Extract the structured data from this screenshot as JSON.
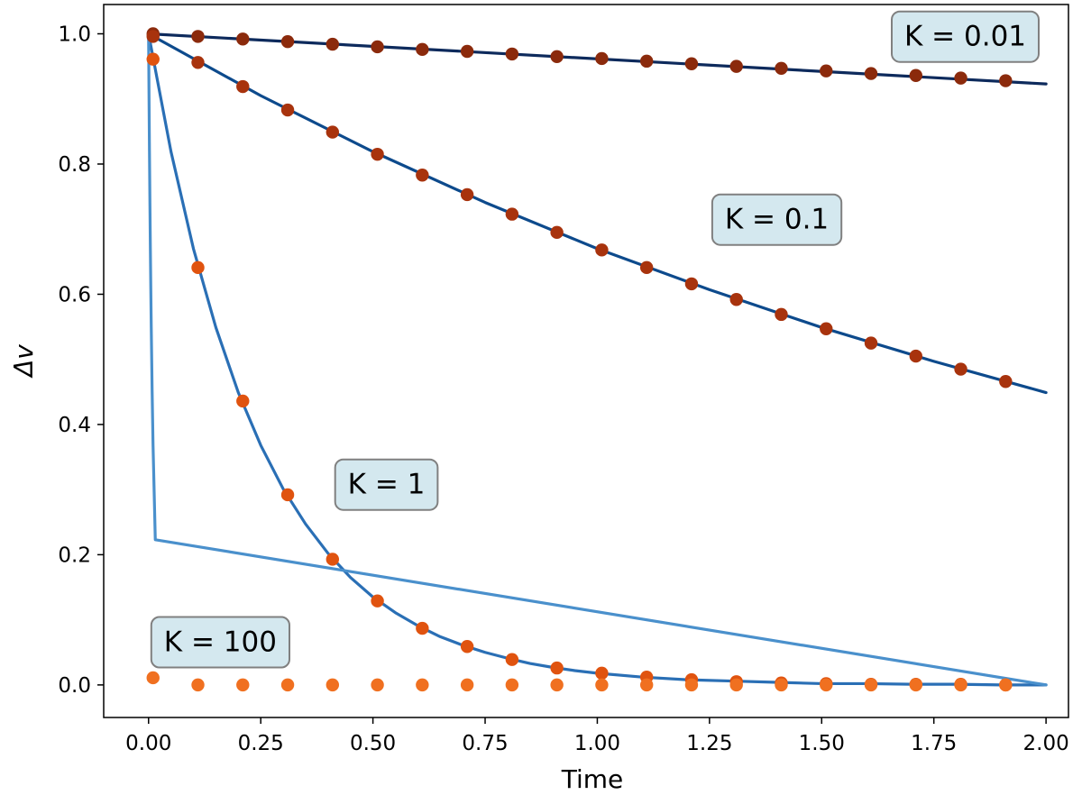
{
  "chart_data": {
    "type": "line",
    "xlabel": "Time",
    "ylabel": "Δv",
    "xlim": [
      -0.1,
      2.05
    ],
    "ylim": [
      -0.05,
      1.045
    ],
    "xticks": [
      "0.00",
      "0.25",
      "0.50",
      "0.75",
      "1.00",
      "1.25",
      "1.50",
      "1.75",
      "2.00"
    ],
    "yticks": [
      "0.0",
      "0.2",
      "0.4",
      "0.6",
      "0.8",
      "1.0"
    ],
    "grid": false,
    "series": [
      {
        "name": "K = 0.01",
        "K": 0.01,
        "line_color": "#0d2a5c",
        "marker_color": "#8b2a0c",
        "curve_x": [
          0.0,
          2.0
        ],
        "curve_y": [
          1.0,
          0.923
        ],
        "points_x": [
          0.01,
          0.11,
          0.21,
          0.31,
          0.41,
          0.51,
          0.61,
          0.71,
          0.81,
          0.91,
          1.01,
          1.11,
          1.21,
          1.31,
          1.41,
          1.51,
          1.61,
          1.71,
          1.81,
          1.91
        ],
        "points_y": [
          1.0,
          0.996,
          0.992,
          0.988,
          0.984,
          0.98,
          0.976,
          0.973,
          0.969,
          0.965,
          0.962,
          0.958,
          0.954,
          0.95,
          0.947,
          0.943,
          0.939,
          0.936,
          0.932,
          0.928
        ]
      },
      {
        "name": "K = 0.1",
        "K": 0.1,
        "line_color": "#0d4a8c",
        "marker_color": "#a8330d",
        "curve_x": [
          0.0,
          0.25,
          0.5,
          0.75,
          1.0,
          1.25,
          1.5,
          1.75,
          2.0
        ],
        "curve_y": [
          1.0,
          0.905,
          0.819,
          0.741,
          0.67,
          0.607,
          0.549,
          0.497,
          0.449
        ],
        "points_x": [
          0.01,
          0.11,
          0.21,
          0.31,
          0.41,
          0.51,
          0.61,
          0.71,
          0.81,
          0.91,
          1.01,
          1.11,
          1.21,
          1.31,
          1.41,
          1.51,
          1.61,
          1.71,
          1.81,
          1.91
        ],
        "points_y": [
          0.996,
          0.956,
          0.919,
          0.883,
          0.849,
          0.815,
          0.783,
          0.753,
          0.723,
          0.695,
          0.668,
          0.641,
          0.616,
          0.592,
          0.569,
          0.547,
          0.525,
          0.505,
          0.485,
          0.466
        ]
      },
      {
        "name": "K = 1",
        "K": 1,
        "line_color": "#2a6fb5",
        "marker_color": "#e0530f",
        "curve_x": [
          0.0,
          0.05,
          0.1,
          0.15,
          0.2,
          0.25,
          0.3,
          0.35,
          0.4,
          0.45,
          0.5,
          0.55,
          0.6,
          0.65,
          0.7,
          0.75,
          0.8,
          0.85,
          0.9,
          0.95,
          1.0,
          1.1,
          1.2,
          1.3,
          1.4,
          1.5,
          1.6,
          1.7,
          1.8,
          1.9,
          2.0
        ],
        "curve_y": [
          1.0,
          0.819,
          0.67,
          0.549,
          0.449,
          0.368,
          0.301,
          0.247,
          0.202,
          0.165,
          0.135,
          0.111,
          0.091,
          0.074,
          0.061,
          0.05,
          0.041,
          0.033,
          0.027,
          0.022,
          0.018,
          0.012,
          0.008,
          0.006,
          0.004,
          0.002,
          0.002,
          0.001,
          0.001,
          0.0,
          0.0
        ],
        "points_x": [
          0.01,
          0.11,
          0.21,
          0.31,
          0.41,
          0.51,
          0.61,
          0.71,
          0.81,
          0.91,
          1.01,
          1.11,
          1.21,
          1.31,
          1.41,
          1.51,
          1.61,
          1.71,
          1.81,
          1.91
        ],
        "points_y": [
          0.961,
          0.641,
          0.436,
          0.292,
          0.193,
          0.129,
          0.087,
          0.059,
          0.039,
          0.026,
          0.018,
          0.012,
          0.008,
          0.005,
          0.003,
          0.002,
          0.001,
          0.001,
          0.001,
          0.0
        ]
      },
      {
        "name": "K = 100",
        "K": 100,
        "line_color": "#4a90cc",
        "marker_color": "#f07020",
        "curve_x": [
          0.0,
          0.001,
          0.002,
          0.003,
          0.004,
          0.005,
          0.006,
          0.008,
          0.01,
          0.015,
          2.0
        ],
        "curve_y": [
          1.0,
          0.905,
          0.819,
          0.741,
          0.67,
          0.607,
          0.549,
          0.449,
          0.368,
          0.223,
          0.0
        ],
        "points_x": [
          0.01,
          0.11,
          0.21,
          0.31,
          0.41,
          0.51,
          0.61,
          0.71,
          0.81,
          0.91,
          1.01,
          1.11,
          1.21,
          1.31,
          1.41,
          1.51,
          1.61,
          1.71,
          1.81,
          1.91
        ],
        "points_y": [
          0.011,
          0.0,
          0.0,
          0.0,
          0.0,
          0.0,
          0.0,
          0.0,
          0.0,
          0.0,
          0.0,
          0.0,
          0.0,
          0.0,
          0.0,
          0.0,
          0.0,
          0.0,
          0.0,
          0.0
        ]
      }
    ],
    "annotations": [
      {
        "text": "K = 0.01",
        "x": 1.82,
        "y": 0.997,
        "target": "K = 0.01"
      },
      {
        "text": "K = 0.1",
        "x": 1.4,
        "y": 0.716,
        "target": "K = 0.1"
      },
      {
        "text": "K = 1",
        "x": 0.53,
        "y": 0.309,
        "target": "K = 1"
      },
      {
        "text": "K = 100",
        "x": 0.16,
        "y": 0.067,
        "target": "K = 100"
      }
    ],
    "annotation_style": {
      "fill": "#d4e8ef",
      "stroke": "#808080"
    }
  }
}
